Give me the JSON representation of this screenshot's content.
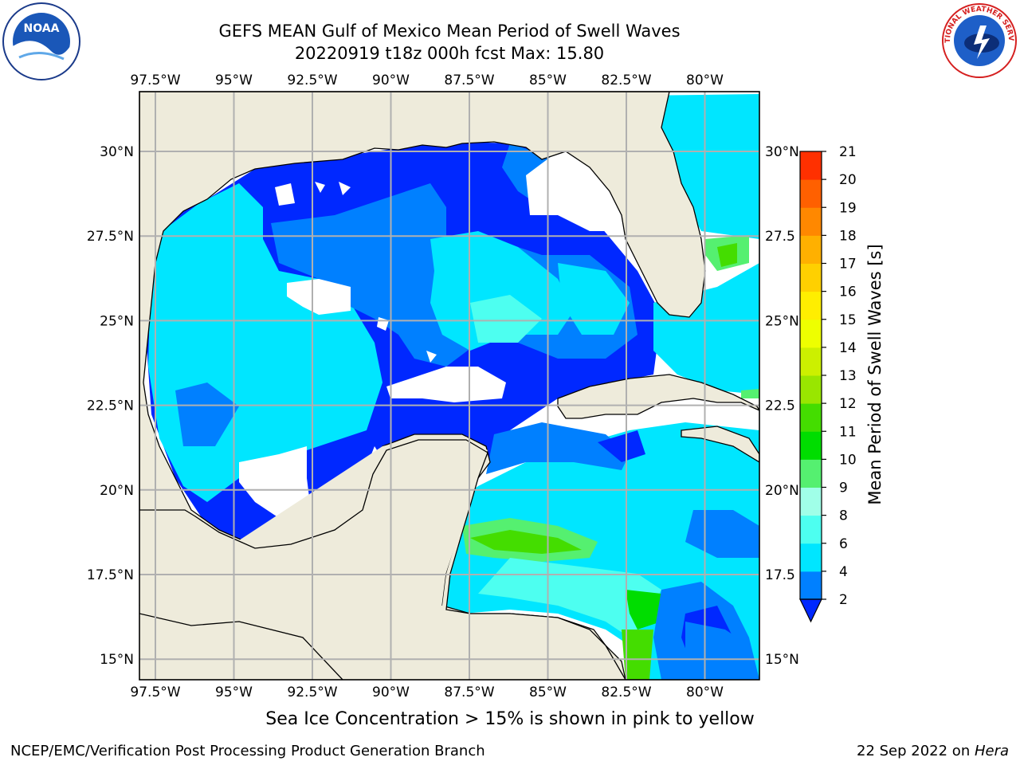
{
  "header": {
    "title_line1": "GEFS MEAN Gulf of Mexico Mean Period of Swell Waves",
    "title_line2": "20220919 t18z 000h fcst   Max: 15.80"
  },
  "logos": {
    "left": "NOAA",
    "right": "NATIONAL WEATHER SERVICE"
  },
  "map": {
    "lon_ticks": [
      "97.5°W",
      "95°W",
      "92.5°W",
      "90°W",
      "87.5°W",
      "85°W",
      "82.5°W",
      "80°W"
    ],
    "lat_ticks_left": [
      "30°N",
      "27.5°N",
      "25°N",
      "22.5°N",
      "20°N",
      "17.5°N",
      "15°N"
    ],
    "lat_ticks_right": [
      "30°N",
      "27.5",
      "25°N",
      "22.5",
      "20°N",
      "17.5",
      "15°N"
    ],
    "land_color": "#eeebdb",
    "grid_color": "#b0b0b0"
  },
  "colorbar": {
    "label": "Mean Period of Swell Waves [s]",
    "ticks": [
      "2",
      "4",
      "6",
      "8",
      "9",
      "10",
      "11",
      "12",
      "13",
      "14",
      "15",
      "16",
      "17",
      "18",
      "19",
      "20",
      "21"
    ],
    "colors": [
      "#0028ff",
      "#0080ff",
      "#00e6ff",
      "#4dfff0",
      "#a0ffe8",
      "#55f070",
      "#00dd00",
      "#44dd00",
      "#99e600",
      "#ccf000",
      "#eeff00",
      "#ffee00",
      "#ffd000",
      "#ffb000",
      "#ff8800",
      "#ff6000",
      "#ff3000",
      "#ff0000"
    ]
  },
  "footer": {
    "note": "Sea Ice Concentration > 15% is shown in pink to yellow",
    "left": "NCEP/EMC/Verification Post Processing Product Generation Branch",
    "right_date": "22 Sep 2022 on ",
    "right_host": "Hera"
  }
}
